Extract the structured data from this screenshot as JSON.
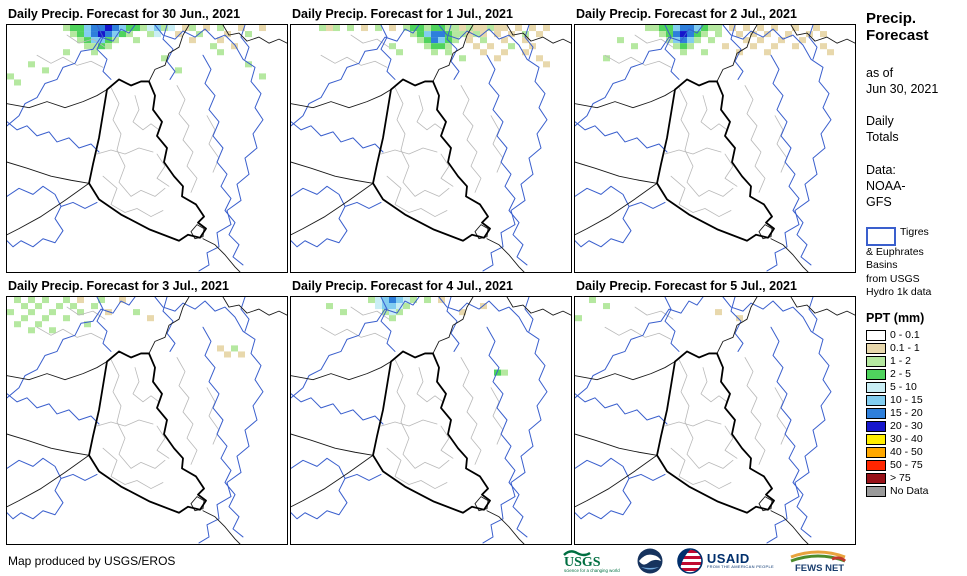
{
  "panels": [
    {
      "title": "Daily Precip. Forecast for 30 Jun., 2021",
      "precip_cells": [
        [
          8,
          0,
          2
        ],
        [
          9,
          0,
          3
        ],
        [
          10,
          0,
          3
        ],
        [
          11,
          0,
          5
        ],
        [
          12,
          0,
          6
        ],
        [
          13,
          0,
          6
        ],
        [
          14,
          0,
          7
        ],
        [
          15,
          0,
          6
        ],
        [
          16,
          0,
          5
        ],
        [
          17,
          0,
          3
        ],
        [
          18,
          0,
          3
        ],
        [
          19,
          0,
          2
        ],
        [
          20,
          0,
          4
        ],
        [
          21,
          0,
          5
        ],
        [
          22,
          0,
          2
        ],
        [
          23,
          0,
          4
        ],
        [
          25,
          0,
          1
        ],
        [
          26,
          0,
          2
        ],
        [
          28,
          0,
          1
        ],
        [
          30,
          0,
          2
        ],
        [
          33,
          0,
          1
        ],
        [
          36,
          0,
          1
        ],
        [
          9,
          1,
          2
        ],
        [
          10,
          1,
          3
        ],
        [
          11,
          1,
          5
        ],
        [
          12,
          1,
          6
        ],
        [
          13,
          1,
          7
        ],
        [
          14,
          1,
          6
        ],
        [
          15,
          1,
          5
        ],
        [
          16,
          1,
          3
        ],
        [
          17,
          1,
          2
        ],
        [
          20,
          1,
          2
        ],
        [
          21,
          1,
          4
        ],
        [
          24,
          1,
          1
        ],
        [
          27,
          1,
          2
        ],
        [
          31,
          1,
          1
        ],
        [
          34,
          1,
          2
        ],
        [
          10,
          2,
          2
        ],
        [
          11,
          2,
          3
        ],
        [
          12,
          2,
          5
        ],
        [
          13,
          2,
          5
        ],
        [
          14,
          2,
          3
        ],
        [
          15,
          2,
          2
        ],
        [
          18,
          2,
          2
        ],
        [
          26,
          2,
          1
        ],
        [
          30,
          2,
          1
        ],
        [
          11,
          3,
          2
        ],
        [
          12,
          3,
          2
        ],
        [
          13,
          3,
          3
        ],
        [
          14,
          3,
          2
        ],
        [
          29,
          3,
          2
        ],
        [
          32,
          3,
          1
        ],
        [
          8,
          4,
          2
        ],
        [
          12,
          4,
          2
        ],
        [
          30,
          4,
          2
        ],
        [
          3,
          6,
          2
        ],
        [
          5,
          7,
          2
        ],
        [
          0,
          8,
          2
        ],
        [
          1,
          9,
          2
        ],
        [
          34,
          6,
          2
        ],
        [
          36,
          8,
          2
        ],
        [
          22,
          5,
          2
        ],
        [
          24,
          7,
          2
        ]
      ]
    },
    {
      "title": "Daily Precip. Forecast for 1 Jul., 2021",
      "precip_cells": [
        [
          4,
          0,
          2
        ],
        [
          5,
          0,
          1
        ],
        [
          6,
          0,
          2
        ],
        [
          8,
          0,
          2
        ],
        [
          10,
          0,
          1
        ],
        [
          12,
          0,
          2
        ],
        [
          14,
          0,
          1
        ],
        [
          16,
          0,
          2
        ],
        [
          17,
          0,
          3
        ],
        [
          18,
          0,
          3
        ],
        [
          19,
          0,
          2
        ],
        [
          20,
          0,
          3
        ],
        [
          21,
          0,
          3
        ],
        [
          22,
          0,
          2
        ],
        [
          23,
          0,
          2
        ],
        [
          24,
          0,
          1
        ],
        [
          25,
          0,
          2
        ],
        [
          26,
          0,
          1
        ],
        [
          27,
          0,
          1
        ],
        [
          28,
          0,
          2
        ],
        [
          29,
          0,
          1
        ],
        [
          30,
          0,
          1
        ],
        [
          32,
          0,
          1
        ],
        [
          34,
          0,
          1
        ],
        [
          36,
          0,
          1
        ],
        [
          17,
          1,
          2
        ],
        [
          18,
          1,
          3
        ],
        [
          19,
          1,
          5
        ],
        [
          20,
          1,
          6
        ],
        [
          21,
          1,
          6
        ],
        [
          22,
          1,
          3
        ],
        [
          23,
          1,
          2
        ],
        [
          24,
          1,
          2
        ],
        [
          25,
          1,
          1
        ],
        [
          26,
          1,
          2
        ],
        [
          27,
          1,
          1
        ],
        [
          29,
          1,
          1
        ],
        [
          31,
          1,
          1
        ],
        [
          33,
          1,
          2
        ],
        [
          35,
          1,
          1
        ],
        [
          18,
          2,
          2
        ],
        [
          19,
          2,
          3
        ],
        [
          20,
          2,
          6
        ],
        [
          21,
          2,
          5
        ],
        [
          22,
          2,
          3
        ],
        [
          23,
          2,
          2
        ],
        [
          25,
          2,
          1
        ],
        [
          27,
          2,
          2
        ],
        [
          30,
          2,
          1
        ],
        [
          33,
          2,
          1
        ],
        [
          19,
          3,
          2
        ],
        [
          20,
          3,
          3
        ],
        [
          21,
          3,
          3
        ],
        [
          22,
          3,
          2
        ],
        [
          26,
          3,
          1
        ],
        [
          28,
          3,
          1
        ],
        [
          31,
          3,
          2
        ],
        [
          34,
          3,
          1
        ],
        [
          20,
          4,
          2
        ],
        [
          22,
          4,
          2
        ],
        [
          27,
          4,
          1
        ],
        [
          30,
          4,
          1
        ],
        [
          33,
          4,
          1
        ],
        [
          24,
          5,
          2
        ],
        [
          29,
          5,
          1
        ],
        [
          35,
          5,
          1
        ],
        [
          36,
          6,
          1
        ],
        [
          14,
          3,
          2
        ],
        [
          15,
          4,
          2
        ]
      ]
    },
    {
      "title": "Daily Precip. Forecast for 2 Jul., 2021",
      "precip_cells": [
        [
          10,
          0,
          2
        ],
        [
          11,
          0,
          2
        ],
        [
          12,
          0,
          3
        ],
        [
          13,
          0,
          3
        ],
        [
          14,
          0,
          5
        ],
        [
          15,
          0,
          6
        ],
        [
          16,
          0,
          6
        ],
        [
          17,
          0,
          5
        ],
        [
          18,
          0,
          3
        ],
        [
          19,
          0,
          2
        ],
        [
          20,
          0,
          2
        ],
        [
          22,
          0,
          1
        ],
        [
          24,
          0,
          1
        ],
        [
          26,
          0,
          1
        ],
        [
          28,
          0,
          1
        ],
        [
          31,
          0,
          1
        ],
        [
          34,
          0,
          1
        ],
        [
          12,
          1,
          2
        ],
        [
          13,
          1,
          3
        ],
        [
          14,
          1,
          6
        ],
        [
          15,
          1,
          7
        ],
        [
          16,
          1,
          6
        ],
        [
          17,
          1,
          3
        ],
        [
          18,
          1,
          2
        ],
        [
          20,
          1,
          2
        ],
        [
          23,
          1,
          1
        ],
        [
          25,
          1,
          1
        ],
        [
          27,
          1,
          1
        ],
        [
          30,
          1,
          1
        ],
        [
          33,
          1,
          1
        ],
        [
          35,
          1,
          1
        ],
        [
          13,
          2,
          2
        ],
        [
          14,
          2,
          5
        ],
        [
          15,
          2,
          6
        ],
        [
          16,
          2,
          5
        ],
        [
          17,
          2,
          2
        ],
        [
          19,
          2,
          2
        ],
        [
          24,
          2,
          1
        ],
        [
          26,
          2,
          1
        ],
        [
          29,
          2,
          1
        ],
        [
          32,
          2,
          1
        ],
        [
          14,
          3,
          2
        ],
        [
          15,
          3,
          3
        ],
        [
          16,
          3,
          2
        ],
        [
          21,
          3,
          1
        ],
        [
          25,
          3,
          1
        ],
        [
          28,
          3,
          1
        ],
        [
          31,
          3,
          1
        ],
        [
          15,
          4,
          2
        ],
        [
          18,
          4,
          2
        ],
        [
          23,
          4,
          1
        ],
        [
          27,
          4,
          1
        ],
        [
          6,
          2,
          2
        ],
        [
          8,
          3,
          2
        ],
        [
          4,
          5,
          2
        ],
        [
          35,
          3,
          1
        ],
        [
          36,
          4,
          1
        ]
      ]
    },
    {
      "title": "Daily Precip. Forecast for 3 Jul., 2021",
      "precip_cells": [
        [
          1,
          0,
          2
        ],
        [
          3,
          0,
          2
        ],
        [
          5,
          0,
          2
        ],
        [
          8,
          0,
          2
        ],
        [
          10,
          0,
          1
        ],
        [
          13,
          0,
          2
        ],
        [
          16,
          0,
          1
        ],
        [
          2,
          1,
          2
        ],
        [
          4,
          1,
          2
        ],
        [
          7,
          1,
          2
        ],
        [
          9,
          1,
          2
        ],
        [
          12,
          1,
          2
        ],
        [
          0,
          2,
          2
        ],
        [
          3,
          2,
          2
        ],
        [
          6,
          2,
          2
        ],
        [
          10,
          2,
          2
        ],
        [
          14,
          2,
          1
        ],
        [
          2,
          3,
          2
        ],
        [
          5,
          3,
          2
        ],
        [
          8,
          3,
          2
        ],
        [
          1,
          4,
          2
        ],
        [
          4,
          4,
          2
        ],
        [
          11,
          4,
          2
        ],
        [
          3,
          5,
          2
        ],
        [
          6,
          5,
          2
        ],
        [
          30,
          8,
          1
        ],
        [
          32,
          8,
          2
        ],
        [
          33,
          9,
          1
        ],
        [
          31,
          9,
          1
        ],
        [
          18,
          2,
          2
        ],
        [
          20,
          3,
          1
        ]
      ]
    },
    {
      "title": "Daily Precip. Forecast for 4 Jul., 2021",
      "precip_cells": [
        [
          11,
          0,
          2
        ],
        [
          12,
          0,
          4
        ],
        [
          13,
          0,
          5
        ],
        [
          14,
          0,
          6
        ],
        [
          15,
          0,
          5
        ],
        [
          16,
          0,
          4
        ],
        [
          17,
          0,
          2
        ],
        [
          19,
          0,
          2
        ],
        [
          21,
          0,
          1
        ],
        [
          12,
          1,
          4
        ],
        [
          13,
          1,
          5
        ],
        [
          14,
          1,
          5
        ],
        [
          15,
          1,
          4
        ],
        [
          16,
          1,
          2
        ],
        [
          13,
          2,
          2
        ],
        [
          14,
          2,
          4
        ],
        [
          15,
          2,
          2
        ],
        [
          14,
          3,
          2
        ],
        [
          5,
          1,
          2
        ],
        [
          7,
          2,
          2
        ],
        [
          24,
          2,
          1
        ],
        [
          27,
          1,
          1
        ],
        [
          29,
          12,
          3
        ],
        [
          30,
          12,
          2
        ]
      ]
    },
    {
      "title": "Daily Precip. Forecast for 5 Jul., 2021",
      "precip_cells": [
        [
          2,
          0,
          2
        ],
        [
          4,
          1,
          2
        ],
        [
          0,
          3,
          2
        ],
        [
          20,
          2,
          1
        ],
        [
          23,
          3,
          1
        ]
      ]
    }
  ],
  "sidebar": {
    "title_line1": "Precip.",
    "title_line2": "Forecast",
    "as_of_label": "as of",
    "as_of_date": "Jun 30, 2021",
    "totals_line1": "Daily",
    "totals_line2": "Totals",
    "data_label": "Data:",
    "data_source_line1": "NOAA-",
    "data_source_line2": "GFS",
    "basin_key_line1": "Tigres",
    "basin_key_line2": "& Euphrates",
    "basin_key_line3": "Basins",
    "basin_key_line4": "from USGS",
    "basin_key_line5": "Hydro 1k data",
    "legend_title": "PPT (mm)",
    "legend": {
      "items": [
        {
          "label": "0 - 0.1",
          "color": "#ffffff"
        },
        {
          "label": "0.1 - 1",
          "color": "#e8d8ac"
        },
        {
          "label": "1 - 2",
          "color": "#b5e8a0"
        },
        {
          "label": "2 - 5",
          "color": "#4fd35d"
        },
        {
          "label": "5 - 10",
          "color": "#c9eef5"
        },
        {
          "label": "10 - 15",
          "color": "#82cdf0"
        },
        {
          "label": "15 - 20",
          "color": "#2e7fdb"
        },
        {
          "label": "20 - 30",
          "color": "#1616cc"
        },
        {
          "label": "30 - 40",
          "color": "#ffee00"
        },
        {
          "label": "40 - 50",
          "color": "#ffa800"
        },
        {
          "label": "50 - 75",
          "color": "#ff2600"
        },
        {
          "label": "> 75",
          "color": "#981118"
        },
        {
          "label": "No Data",
          "color": "#9a9a9a"
        }
      ]
    }
  },
  "footer": {
    "credit": "Map produced by USGS/EROS",
    "logos": [
      {
        "name": "USGS",
        "tagline": "science for a changing world"
      },
      {
        "name": "NOAA"
      },
      {
        "name": "USAID",
        "tagline": "FROM THE AMERICAN PEOPLE"
      },
      {
        "name": "FEWS NET"
      }
    ]
  },
  "map_colors": {
    "basin_line": "#3a5fcd",
    "intl_border": "#1a1a1a",
    "iraq_outline": "#000000",
    "admin_line": "#b9b9b9"
  }
}
